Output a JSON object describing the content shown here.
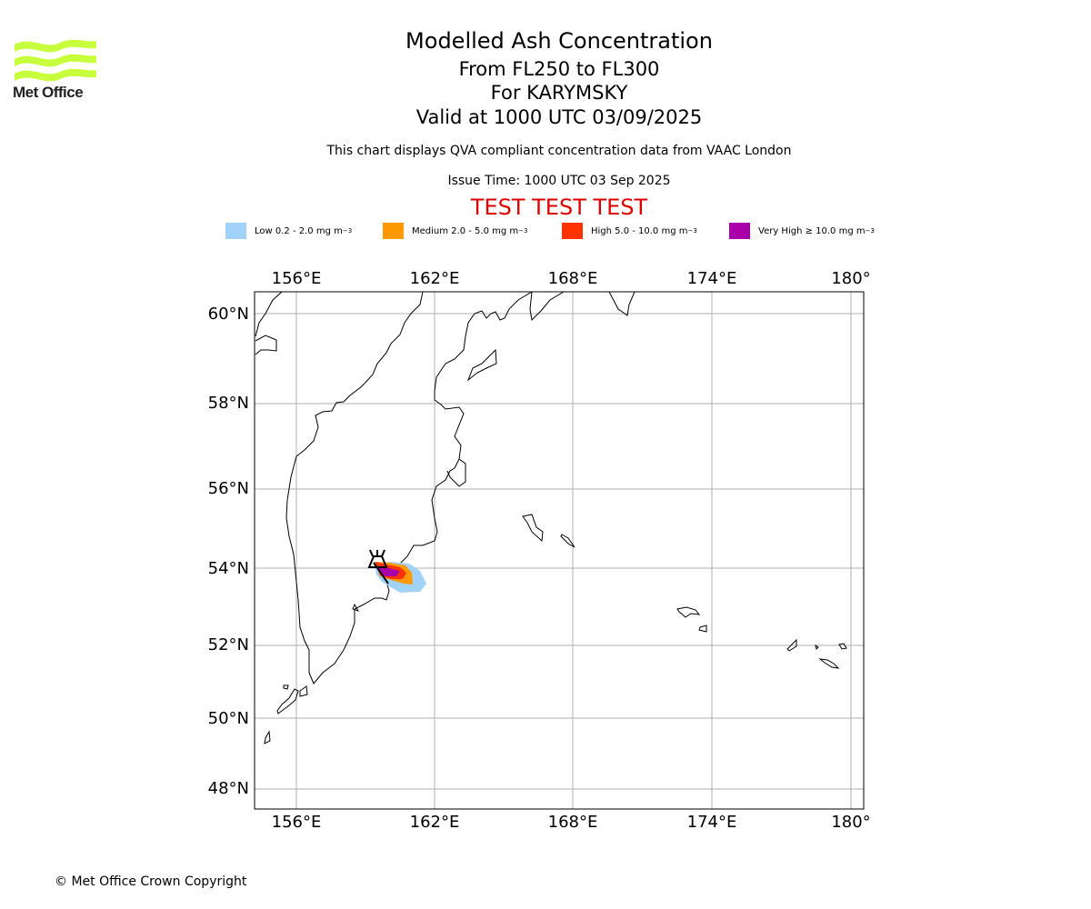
{
  "header": {
    "title": "Modelled Ash Concentration",
    "flight_levels": "From FL250 to FL300",
    "volcano": "For KARYMSKY",
    "valid_time": "Valid at 1000 UTC 03/09/2025",
    "note": "This chart displays QVA compliant concentration data from VAAC London",
    "issue_time": "Issue Time: 1000 UTC 03 Sep 2025",
    "test_banner": "TEST TEST TEST"
  },
  "logo": {
    "text": "Met Office",
    "color": "#c8ff3c"
  },
  "legend": [
    {
      "label": "Low 0.2 - 2.0 mg m",
      "sup": "−3",
      "color": "#a0d2fa"
    },
    {
      "label": "Medium 2.0 - 5.0 mg m",
      "sup": "−3",
      "color": "#ff9900"
    },
    {
      "label": "High 5.0 - 10.0 mg m",
      "sup": "−3",
      "color": "#ff3300"
    },
    {
      "label": "Very High  ≥  10.0 mg m",
      "sup": "−3",
      "color": "#aa00aa"
    }
  ],
  "axes": {
    "lon_labels": [
      "156°E",
      "162°E",
      "168°E",
      "174°E",
      "180°"
    ],
    "lat_labels": [
      "60°N",
      "58°N",
      "56°N",
      "54°N",
      "52°N",
      "50°N",
      "48°N"
    ]
  },
  "footer": {
    "copyright": "© Met Office Crown Copyright"
  }
}
